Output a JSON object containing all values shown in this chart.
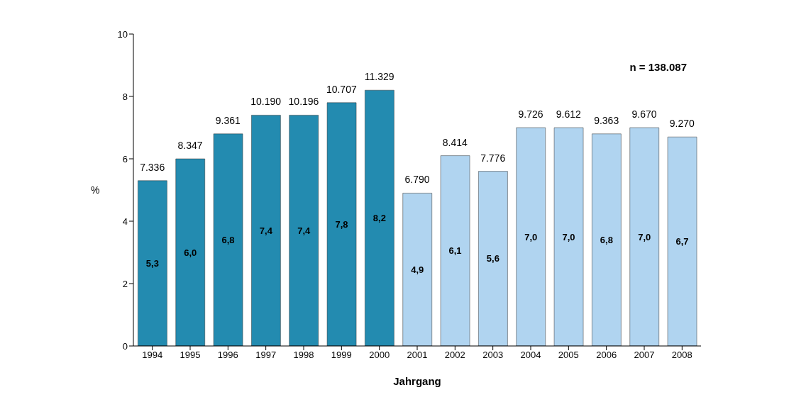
{
  "chart_data": {
    "type": "bar",
    "categories": [
      "1994",
      "1995",
      "1996",
      "1997",
      "1998",
      "1999",
      "2000",
      "2001",
      "2002",
      "2003",
      "2004",
      "2005",
      "2006",
      "2007",
      "2008"
    ],
    "values": [
      5.3,
      6.0,
      6.8,
      7.4,
      7.4,
      7.8,
      8.2,
      4.9,
      6.1,
      5.6,
      7.0,
      7.0,
      6.8,
      7.0,
      6.7
    ],
    "colors": [
      "#238bb0",
      "#238bb0",
      "#238bb0",
      "#238bb0",
      "#238bb0",
      "#238bb0",
      "#238bb0",
      "#b0d4f0",
      "#b0d4f0",
      "#b0d4f0",
      "#b0d4f0",
      "#b0d4f0",
      "#b0d4f0",
      "#b0d4f0",
      "#b0d4f0"
    ],
    "value_labels": [
      "5,3",
      "6,0",
      "6,8",
      "7,4",
      "7,4",
      "7,8",
      "8,2",
      "4,9",
      "6,1",
      "5,6",
      "7,0",
      "7,0",
      "6,8",
      "7,0",
      "6,7"
    ],
    "xlabel": "Jahrgang",
    "ylabel": "%",
    "ylim": [
      0,
      10
    ],
    "yticks": [
      0,
      2,
      4,
      6,
      8,
      10
    ],
    "grid": false,
    "legend": false,
    "annotations": [
      "n = 138.087",
      {
        "text": "7.336",
        "x": "1994",
        "y": 5.3
      },
      {
        "text": "8.347",
        "x": "1995",
        "y": 6.0
      },
      {
        "text": "9.361",
        "x": "1996",
        "y": 6.8
      },
      {
        "text": "10.190",
        "x": "1997",
        "y": 7.4
      },
      {
        "text": "10.196",
        "x": "1998",
        "y": 7.4
      },
      {
        "text": "10.707",
        "x": "1999",
        "y": 7.8
      },
      {
        "text": "11.329",
        "x": "2000",
        "y": 8.2
      },
      {
        "text": "6.790",
        "x": "2001",
        "y": 4.9
      },
      {
        "text": "8.414",
        "x": "2002",
        "y": 6.1
      },
      {
        "text": "7.776",
        "x": "2003",
        "y": 5.6
      },
      {
        "text": "9.726",
        "x": "2004",
        "y": 7.0
      },
      {
        "text": "9.612",
        "x": "2005",
        "y": 7.0
      },
      {
        "text": "9.363",
        "x": "2006",
        "y": 6.8
      },
      {
        "text": "9.670",
        "x": "2007",
        "y": 7.0
      },
      {
        "text": "9.270",
        "x": "2008",
        "y": 6.7
      }
    ]
  }
}
